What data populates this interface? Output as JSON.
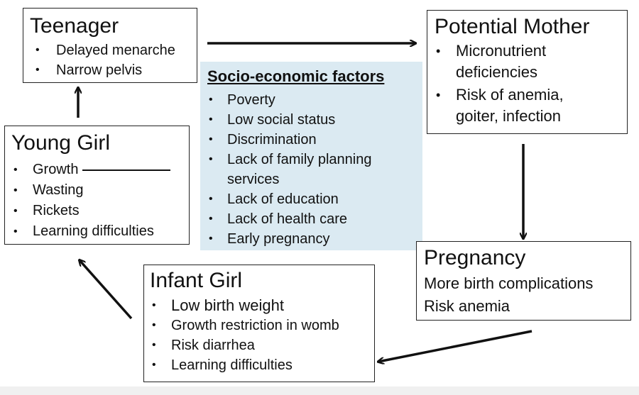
{
  "teenager": {
    "title": "Teenager",
    "items": [
      "Delayed menarche",
      "Narrow pelvis"
    ]
  },
  "potential_mother": {
    "title": "Potential Mother",
    "items": [
      "Micronutrient deficiencies",
      "Risk of anemia, goiter, infection"
    ]
  },
  "young_girl": {
    "title": "Young Girl",
    "items": [
      "Growth",
      "Wasting",
      "Rickets",
      "Learning difficulties"
    ]
  },
  "pregnancy": {
    "title": "Pregnancy",
    "lines": [
      "More birth complications",
      "Risk anemia"
    ]
  },
  "infant_girl": {
    "title": "Infant Girl",
    "items": [
      "Low birth weight",
      "Growth restriction in womb",
      "Risk diarrhea",
      "Learning difficulties"
    ]
  },
  "socio_economic": {
    "title": "Socio-economic factors",
    "items": [
      "Poverty",
      "Low social status",
      "Discrimination",
      "Lack of family planning services",
      "Lack of education",
      "Lack of health care",
      "Early pregnancy"
    ]
  },
  "bullet": "•",
  "colors": {
    "factor_bg": "#dbeaf2",
    "border": "#222222",
    "arrow": "#111111"
  }
}
